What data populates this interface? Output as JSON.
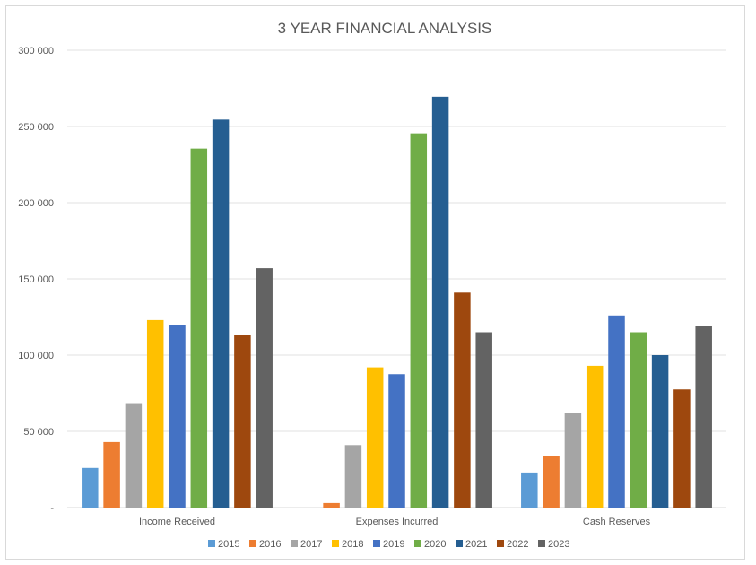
{
  "chart_data": {
    "type": "bar",
    "title": "3 YEAR FINANCIAL ANALYSIS",
    "categories": [
      "Income Received",
      "Expenses Incurred",
      "Cash Reserves"
    ],
    "ylim": [
      0,
      300000
    ],
    "yticks": [
      {
        "value": 0,
        "label": "-"
      },
      {
        "value": 50000,
        "label": "50 000"
      },
      {
        "value": 100000,
        "label": "100 000"
      },
      {
        "value": 150000,
        "label": "150 000"
      },
      {
        "value": 200000,
        "label": "200 000"
      },
      {
        "value": 250000,
        "label": "250 000"
      },
      {
        "value": 300000,
        "label": "300 000"
      }
    ],
    "grid": true,
    "legend_position": "bottom",
    "series": [
      {
        "name": "2015",
        "color": "#5b9bd5",
        "values": [
          26000,
          0,
          23000
        ]
      },
      {
        "name": "2016",
        "color": "#ed7d31",
        "values": [
          43000,
          3000,
          34000
        ]
      },
      {
        "name": "2017",
        "color": "#a5a5a5",
        "values": [
          68500,
          41000,
          62000
        ]
      },
      {
        "name": "2018",
        "color": "#ffc000",
        "values": [
          123000,
          92000,
          93000
        ]
      },
      {
        "name": "2019",
        "color": "#4472c4",
        "values": [
          120000,
          87500,
          126000
        ]
      },
      {
        "name": "2020",
        "color": "#70ad47",
        "values": [
          235500,
          245500,
          115000
        ]
      },
      {
        "name": "2021",
        "color": "#255e91",
        "values": [
          254500,
          269500,
          100000
        ]
      },
      {
        "name": "2022",
        "color": "#9e480e",
        "values": [
          113000,
          141000,
          77500
        ]
      },
      {
        "name": "2023",
        "color": "#636363",
        "values": [
          157000,
          115000,
          119000
        ]
      }
    ]
  }
}
